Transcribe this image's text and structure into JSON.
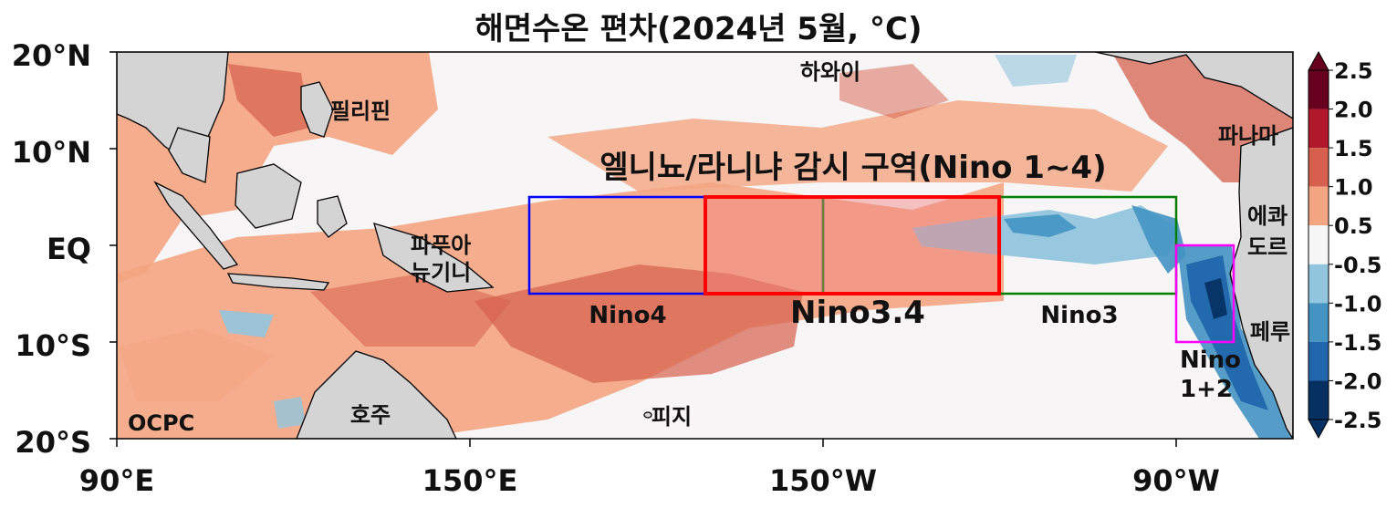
{
  "title": "해면수온 편차(2024년 5월, °C)",
  "map": {
    "lat_ticks": [
      "20°N",
      "10°N",
      "EQ",
      "10°S",
      "20°S"
    ],
    "lon_ticks": [
      "90°E",
      "150°E",
      "150°W",
      "90°W"
    ],
    "places": {
      "philippines": "필리핀",
      "hawaii": "하와이",
      "panama": "파나마",
      "ecuador": "에콰\n도르",
      "papua": "파푸아\n뉴기니",
      "peru": "페루",
      "australia": "호주",
      "fiji": "피지"
    },
    "watermark": "OCPC",
    "monitor_title": "엘니뇨/라니냐 감시 구역(Nino 1~4)",
    "regions": [
      {
        "name": "Nino4",
        "color": "#0000ff"
      },
      {
        "name": "Nino3.4",
        "color": "#ff0000"
      },
      {
        "name": "Nino3",
        "color": "#008000"
      },
      {
        "name": "Nino\n1+2",
        "color": "#ff00ff"
      }
    ]
  },
  "colorbar": {
    "labels": [
      "2.5",
      "2.0",
      "1.5",
      "1.0",
      "0.5",
      "-0.5",
      "-1.0",
      "-1.5",
      "-2.0",
      "-2.5"
    ],
    "colors": [
      "#67001f",
      "#b2182b",
      "#d6604d",
      "#f4a582",
      "#f7f7f7",
      "#92c5de",
      "#4393c3",
      "#2166ac",
      "#053061"
    ]
  }
}
